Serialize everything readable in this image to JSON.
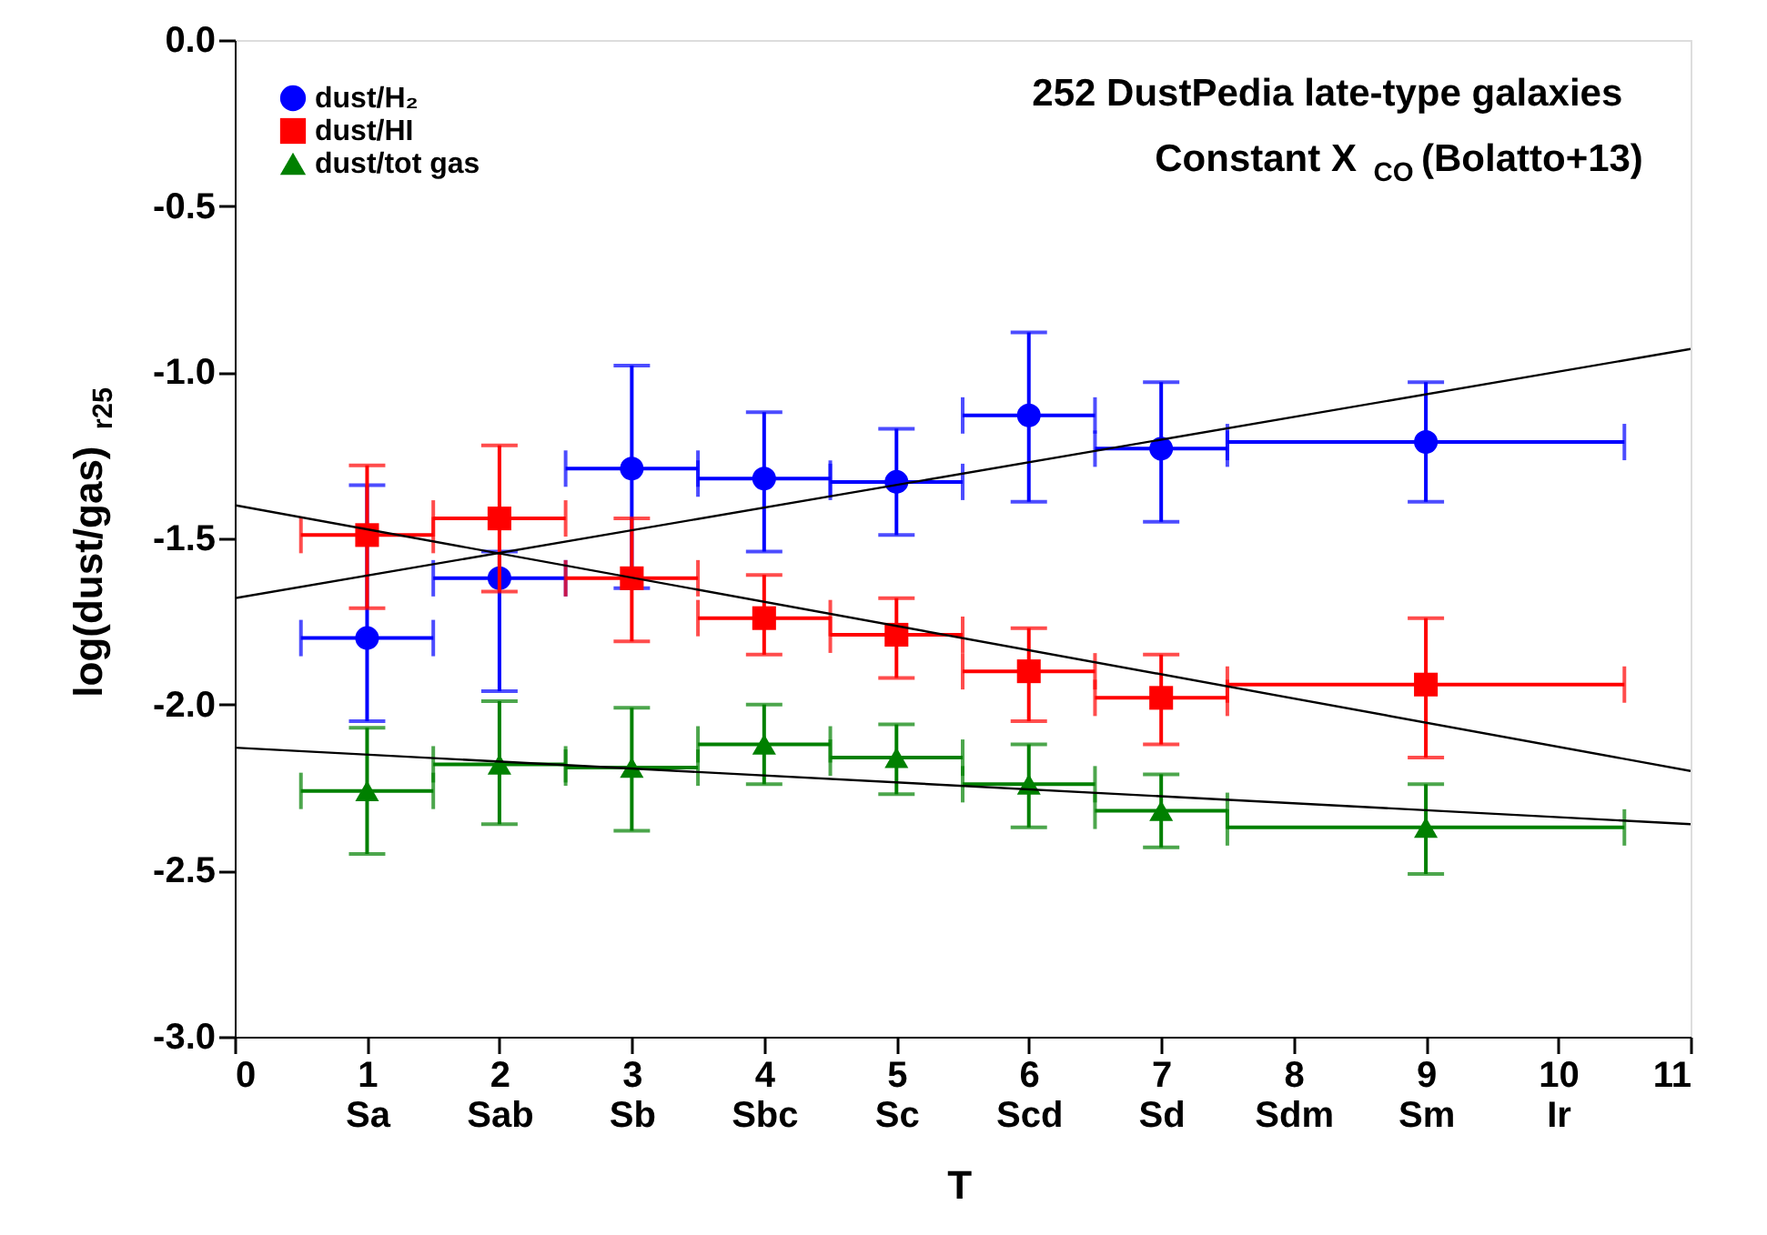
{
  "chart_data": {
    "type": "scatter",
    "xlabel": "T",
    "ylabel": "log(dust/gas)$_{r25}$",
    "annotations": [
      "252 DustPedia late-type galaxies",
      "Constant X$_{CO}$ (Bolatto+13)"
    ],
    "xlim": [
      0,
      11
    ],
    "ylim": [
      -3,
      0
    ],
    "xticks": [
      0,
      {
        "value": 1,
        "label": "1\nSa"
      },
      {
        "value": 2,
        "label": "2\nSab"
      },
      {
        "value": 3,
        "label": "3\nSb"
      },
      {
        "value": 4,
        "label": "4\nSbc"
      },
      {
        "value": 5,
        "label": "5\nSc"
      },
      {
        "value": 6,
        "label": "6\nScd"
      },
      {
        "value": 7,
        "label": "7\nSd"
      },
      {
        "value": 8,
        "label": "8\nSdm"
      },
      {
        "value": 9,
        "label": "9\nSm"
      },
      {
        "value": 10,
        "label": "10\nIr"
      },
      11
    ],
    "yticks": [
      {
        "value": -3,
        "label": "-3.0"
      },
      -2.5,
      {
        "value": -2,
        "label": "-2.0"
      },
      -1.5,
      {
        "value": -1,
        "label": "-1.0"
      },
      -0.5,
      {
        "value": 0,
        "label": "0.0"
      }
    ],
    "grid": false,
    "legend": "top left",
    "series": [
      {
        "name": "dust/H₂",
        "color": "#0000ff",
        "marker": "circle",
        "x": [
          1,
          2,
          3,
          4,
          5,
          6,
          7,
          9
        ],
        "values": [
          -1.8,
          -1.62,
          -1.29,
          -1.32,
          -1.33,
          -1.13,
          -1.23,
          -1.21
        ],
        "errors": [
          [
            -2.05,
            -1.34
          ],
          [
            -1.96,
            -1.54
          ],
          [
            -1.65,
            -0.98
          ],
          [
            -1.54,
            -1.12
          ],
          [
            -1.49,
            -1.17
          ],
          [
            -1.39,
            -0.88
          ],
          [
            -1.45,
            -1.03
          ],
          [
            -1.39,
            -1.03
          ]
        ],
        "xerrors": [
          [
            0.5,
            1.5
          ],
          [
            1.5,
            2.5
          ],
          [
            2.5,
            3.5
          ],
          [
            3.5,
            4.5
          ],
          [
            4.5,
            5.5
          ],
          [
            5.5,
            6.5
          ],
          [
            6.5,
            7.5
          ],
          [
            7.5,
            10.5
          ]
        ]
      },
      {
        "name": "dust/HI",
        "color": "#ff0000",
        "marker": "square",
        "x": [
          1,
          2,
          3,
          4,
          5,
          6,
          7,
          9
        ],
        "values": [
          -1.49,
          -1.44,
          -1.62,
          -1.74,
          -1.79,
          -1.9,
          -1.98,
          -1.94
        ],
        "errors": [
          [
            -1.71,
            -1.28
          ],
          [
            -1.66,
            -1.22
          ],
          [
            -1.81,
            -1.44
          ],
          [
            -1.85,
            -1.61
          ],
          [
            -1.92,
            -1.68
          ],
          [
            -2.05,
            -1.77
          ],
          [
            -2.12,
            -1.85
          ],
          [
            -2.16,
            -1.74
          ]
        ],
        "xerrors": [
          [
            0.5,
            1.5
          ],
          [
            1.5,
            2.5
          ],
          [
            2.5,
            3.5
          ],
          [
            3.5,
            4.5
          ],
          [
            4.5,
            5.5
          ],
          [
            5.5,
            6.5
          ],
          [
            6.5,
            7.5
          ],
          [
            7.5,
            10.5
          ]
        ]
      },
      {
        "name": "dust/tot gas",
        "color": "#008000",
        "marker": "triangle",
        "x": [
          1,
          2,
          3,
          4,
          5,
          6,
          7,
          9
        ],
        "values": [
          -2.26,
          -2.18,
          -2.19,
          -2.12,
          -2.16,
          -2.24,
          -2.32,
          -2.37
        ],
        "errors": [
          [
            -2.45,
            -2.07
          ],
          [
            -2.36,
            -1.99
          ],
          [
            -2.38,
            -2.01
          ],
          [
            -2.24,
            -2.0
          ],
          [
            -2.27,
            -2.06
          ],
          [
            -2.37,
            -2.12
          ],
          [
            -2.43,
            -2.21
          ],
          [
            -2.51,
            -2.24
          ]
        ],
        "xerrors": [
          [
            0.5,
            1.5
          ],
          [
            1.5,
            2.5
          ],
          [
            2.5,
            3.5
          ],
          [
            3.5,
            4.5
          ],
          [
            4.5,
            5.5
          ],
          [
            5.5,
            6.5
          ],
          [
            6.5,
            7.5
          ],
          [
            7.5,
            10.5
          ]
        ]
      },
      {
        "type": "line",
        "color": "#000000",
        "x": [
          0,
          11
        ],
        "values": [
          -1.68,
          -0.93
        ]
      },
      {
        "type": "line",
        "color": "#000000",
        "x": [
          0,
          11
        ],
        "values": [
          -1.4,
          -2.2
        ]
      },
      {
        "type": "line",
        "color": "#000000",
        "x": [
          0,
          11
        ],
        "values": [
          -2.13,
          -2.36
        ]
      }
    ]
  }
}
